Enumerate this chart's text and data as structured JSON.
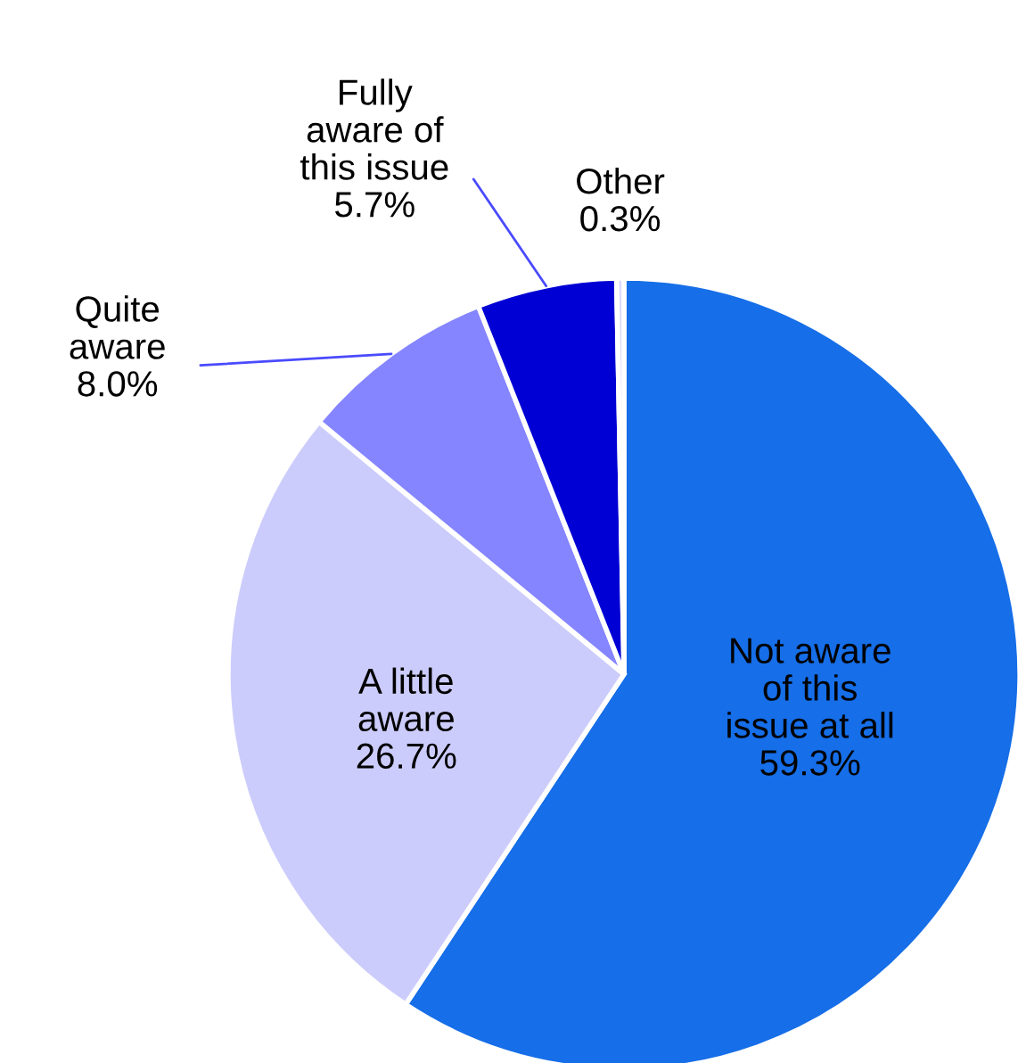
{
  "chart_data": {
    "type": "pie",
    "categories": [
      "Not aware\nof this\nissue at all",
      "A little\naware",
      "Quite\naware",
      "Fully\naware of\nthis issue",
      "Other"
    ],
    "values": [
      59.3,
      26.7,
      8.0,
      5.7,
      0.3
    ],
    "colors": [
      "#166ee8",
      "#ccccfc",
      "#8585ff",
      "#0000d4",
      "#dcdcff"
    ],
    "value_labels": [
      "59.3%",
      "26.7%",
      "8.0%",
      "5.7%",
      "0.3%"
    ]
  }
}
